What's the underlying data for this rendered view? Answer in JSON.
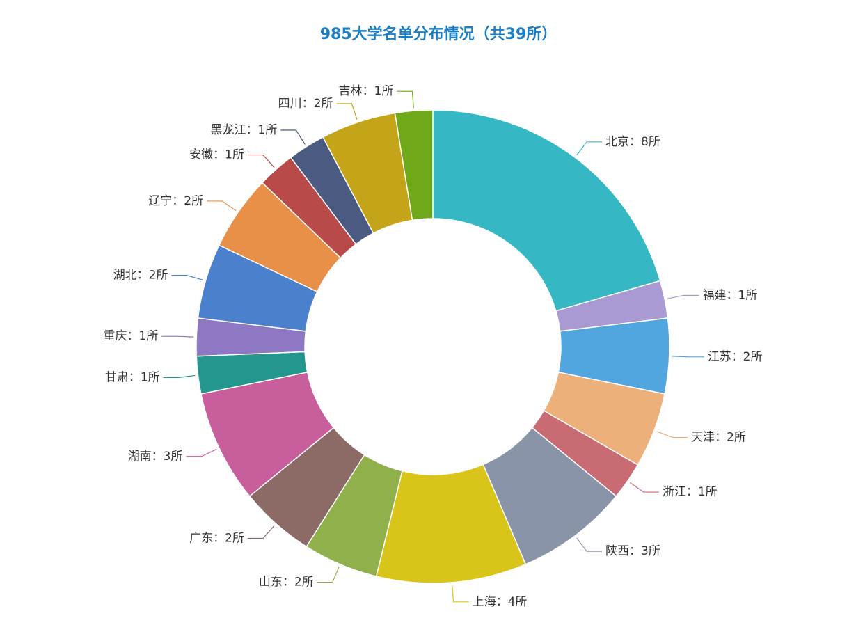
{
  "chart_data": {
    "type": "pie",
    "title": "985大学名单分布情况（共39所）",
    "donut": true,
    "labels": [
      "北京：8所",
      "福建：1所",
      "江苏：2所",
      "天津：2所",
      "浙江：1所",
      "陕西：3所",
      "上海：4所",
      "山东：2所",
      "广东：2所",
      "湖南：3所",
      "甘肃：1所",
      "重庆：1所",
      "湖北：2所",
      "辽宁：2所",
      "安徽：1所",
      "黑龙江：1所",
      "四川：2所",
      "吉林：1所"
    ],
    "values": [
      8,
      1,
      2,
      2,
      1,
      3,
      4,
      2,
      2,
      3,
      1,
      1,
      2,
      2,
      1,
      1,
      2,
      1
    ],
    "colors": [
      "#36b8c4",
      "#a99ad4",
      "#52a6e0",
      "#eeb07a",
      "#c96b73",
      "#8a94a8",
      "#d9c51a",
      "#8fb04b",
      "#8c6a66",
      "#c95e9d",
      "#23968e",
      "#8e78c4",
      "#4a80cc",
      "#e89048",
      "#b84a4a",
      "#4a5a80",
      "#c4a418",
      "#6fa818"
    ]
  }
}
